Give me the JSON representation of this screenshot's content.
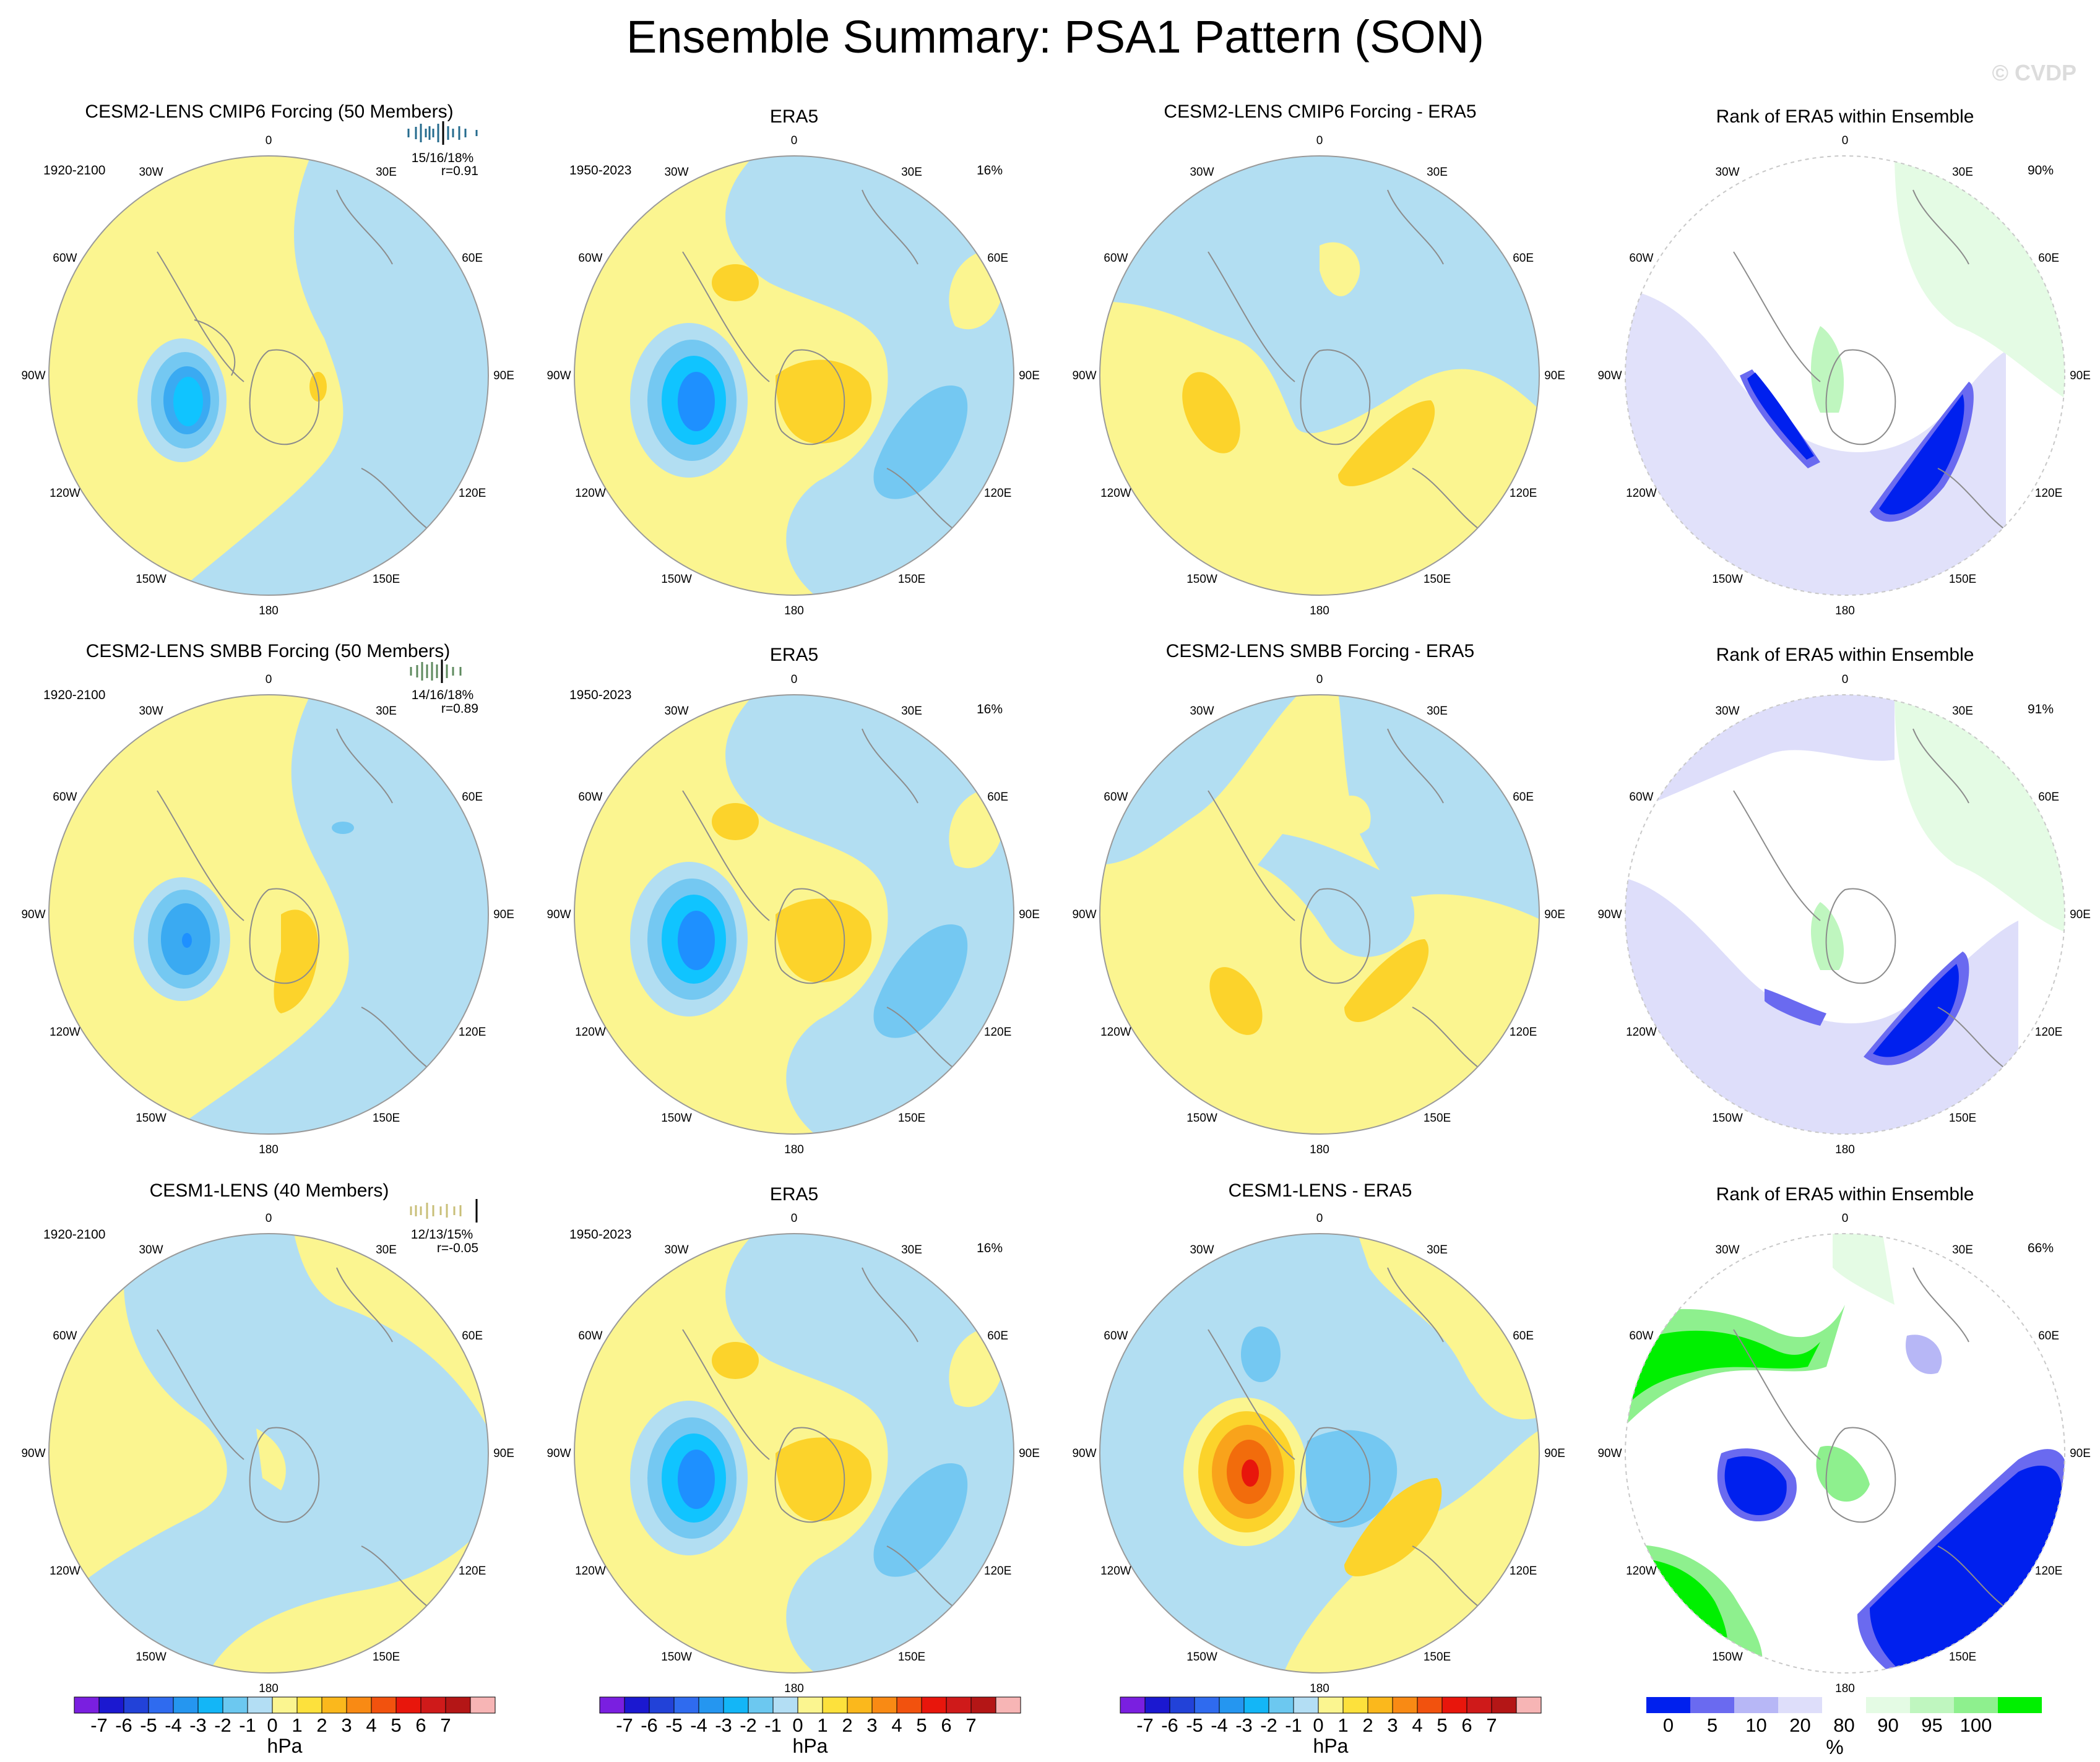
{
  "title": "Ensemble Summary: PSA1 Pattern (SON)",
  "watermark": "© CVDP",
  "colors": {
    "yellow": "#fbf590",
    "lightblue": "#b2def2",
    "blue2": "#74c8f2",
    "blue3": "#3aaaf2",
    "blue4": "#10c4ff",
    "blue5": "#1e90ff",
    "gold1": "#fde13c",
    "gold2": "#fcd32b",
    "orange": "#f9a31b",
    "orange2": "#f26c0c",
    "red": "#e8160c",
    "rank_blue": "#0020ee",
    "rank_blue2": "#6a6af0",
    "rank_blue3": "#b7b7f6",
    "rank_blue4": "#dedefa",
    "rank_green4": "#e4fbe4",
    "rank_green3": "#bff6bf",
    "rank_green2": "#8ef08e",
    "rank_green": "#00f000",
    "coast": "#8c8c8c"
  },
  "longitude_labels": [
    "0",
    "30E",
    "60E",
    "90E",
    "120E",
    "150E",
    "180",
    "150W",
    "120W",
    "90W",
    "60W",
    "30W"
  ],
  "rows": [
    {
      "model_title": "CESM2-LENS CMIP6 Forcing (50 Members)",
      "model_title_color": "#256b8e",
      "model_period": "1920-2100",
      "model_stats": "15/16/18%",
      "model_corr": "r=0.91",
      "era_title": "ERA5",
      "era_period": "1950-2023",
      "era_pct": "16%",
      "diff_title": "CESM2-LENS CMIP6 Forcing - ERA5",
      "rank_title": "Rank of ERA5 within Ensemble",
      "rank_pct": "90%"
    },
    {
      "model_title": "CESM2-LENS SMBB Forcing (50 Members)",
      "model_title_color": "#5e8a5e",
      "model_period": "1920-2100",
      "model_stats": "14/16/18%",
      "model_corr": "r=0.89",
      "era_title": "ERA5",
      "era_period": "1950-2023",
      "era_pct": "16%",
      "diff_title": "CESM2-LENS SMBB Forcing - ERA5",
      "rank_title": "Rank of ERA5 within Ensemble",
      "rank_pct": "91%"
    },
    {
      "model_title": "CESM1-LENS (40 Members)",
      "model_title_color": "#c9bf78",
      "model_period": "1920-2100",
      "model_stats": "12/13/15%",
      "model_corr": "r=-0.05",
      "era_title": "ERA5",
      "era_period": "1950-2023",
      "era_pct": "16%",
      "diff_title": "CESM1-LENS - ERA5",
      "rank_title": "Rank of ERA5 within Ensemble",
      "rank_pct": "66%"
    }
  ],
  "chart_data": {
    "type": "heatmap",
    "projection": "south-polar stereographic",
    "field": "PSA1 pattern sea level pressure regression (SON)",
    "hpa_colorbar": {
      "ticks": [
        "-7",
        "-6",
        "-5",
        "-4",
        "-3",
        "-2",
        "-1",
        "0",
        "1",
        "2",
        "3",
        "4",
        "5",
        "6",
        "7"
      ],
      "unit": "hPa",
      "colors": [
        "#7a1fe0",
        "#1b18d0",
        "#2242d8",
        "#2f6bef",
        "#2596f0",
        "#13b6f7",
        "#6cc8f0",
        "#b3def4",
        "#fbf590",
        "#fde13c",
        "#fbb81c",
        "#f98a14",
        "#f2520e",
        "#e8160c",
        "#cf1a1a",
        "#b41616",
        "#f7b5b5"
      ]
    },
    "rank_colorbar": {
      "ticks": [
        "0",
        "5",
        "10",
        "20",
        "80",
        "90",
        "95",
        "100"
      ],
      "unit": "%",
      "colors": [
        "#0020ee",
        "#6a6af0",
        "#b7b7f6",
        "#dedefa",
        "#ffffff",
        "#e4fbe4",
        "#bff6bf",
        "#8ef08e",
        "#00f000"
      ]
    }
  }
}
